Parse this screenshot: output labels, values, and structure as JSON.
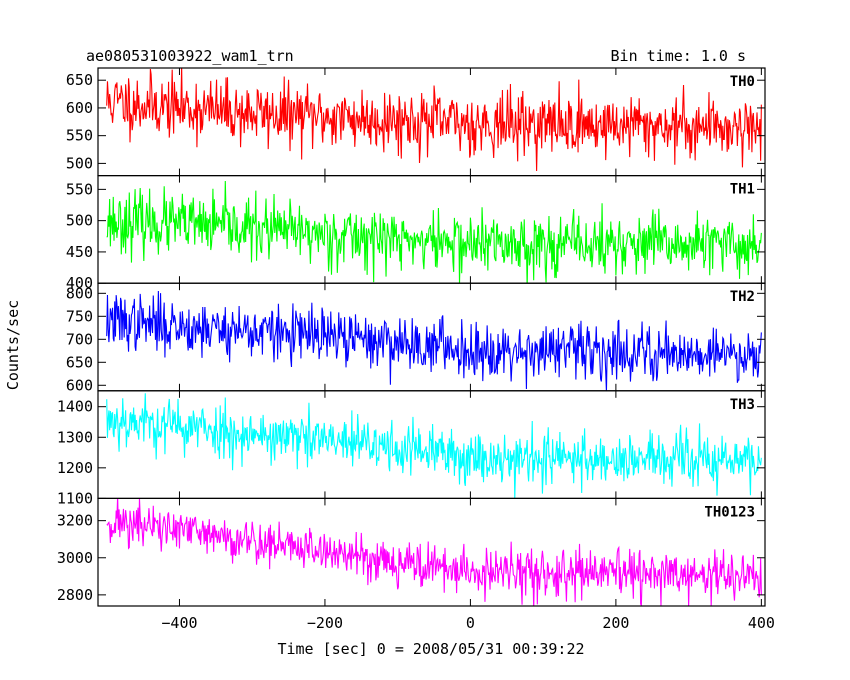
{
  "header": {
    "left_title": "ae080531003922_wam1_trn",
    "right_title": "Bin time: 1.0 s"
  },
  "chart_data": {
    "type": "line",
    "xlabel": "Time [sec] 0 = 2008/05/31 00:39:22",
    "ylabel": "Counts/sec",
    "xlim": [
      -512,
      405
    ],
    "xticks": [
      -400,
      -200,
      0,
      200,
      400
    ],
    "x_start": -500,
    "x_end": 400,
    "x_step": 1,
    "grid": false,
    "panels": [
      {
        "name": "TH0",
        "color": "#ff0000",
        "ylim": [
          478,
          672
        ],
        "yticks": [
          500,
          550,
          600,
          650
        ],
        "trend": [
          [
            -500,
            612
          ],
          [
            -300,
            590
          ],
          [
            -100,
            578
          ],
          [
            0,
            572
          ],
          [
            400,
            566
          ]
        ],
        "noise": 28,
        "seed": 11
      },
      {
        "name": "TH1",
        "color": "#00ff00",
        "ylim": [
          400,
          572
        ],
        "yticks": [
          400,
          450,
          500,
          550
        ],
        "trend": [
          [
            -500,
            500
          ],
          [
            -300,
            487
          ],
          [
            -100,
            470
          ],
          [
            0,
            463
          ],
          [
            400,
            460
          ]
        ],
        "noise": 24,
        "seed": 23
      },
      {
        "name": "TH2",
        "color": "#0000ff",
        "ylim": [
          588,
          822
        ],
        "yticks": [
          600,
          650,
          700,
          750,
          800
        ],
        "trend": [
          [
            -500,
            740
          ],
          [
            -300,
            718
          ],
          [
            -100,
            693
          ],
          [
            0,
            678
          ],
          [
            400,
            668
          ]
        ],
        "noise": 30,
        "seed": 37
      },
      {
        "name": "TH3",
        "color": "#00ffff",
        "ylim": [
          1100,
          1452
        ],
        "yticks": [
          1100,
          1200,
          1300,
          1400
        ],
        "trend": [
          [
            -500,
            1362
          ],
          [
            -300,
            1310
          ],
          [
            -100,
            1265
          ],
          [
            0,
            1235
          ],
          [
            400,
            1222
          ]
        ],
        "noise": 44,
        "seed": 53
      },
      {
        "name": "TH0123",
        "color": "#ff00ff",
        "ylim": [
          2740,
          3320
        ],
        "yticks": [
          2800,
          3000,
          3200
        ],
        "trend": [
          [
            -500,
            3200
          ],
          [
            -300,
            3090
          ],
          [
            -100,
            2980
          ],
          [
            0,
            2920
          ],
          [
            400,
            2900
          ]
        ],
        "noise": 62,
        "seed": 71
      }
    ]
  }
}
